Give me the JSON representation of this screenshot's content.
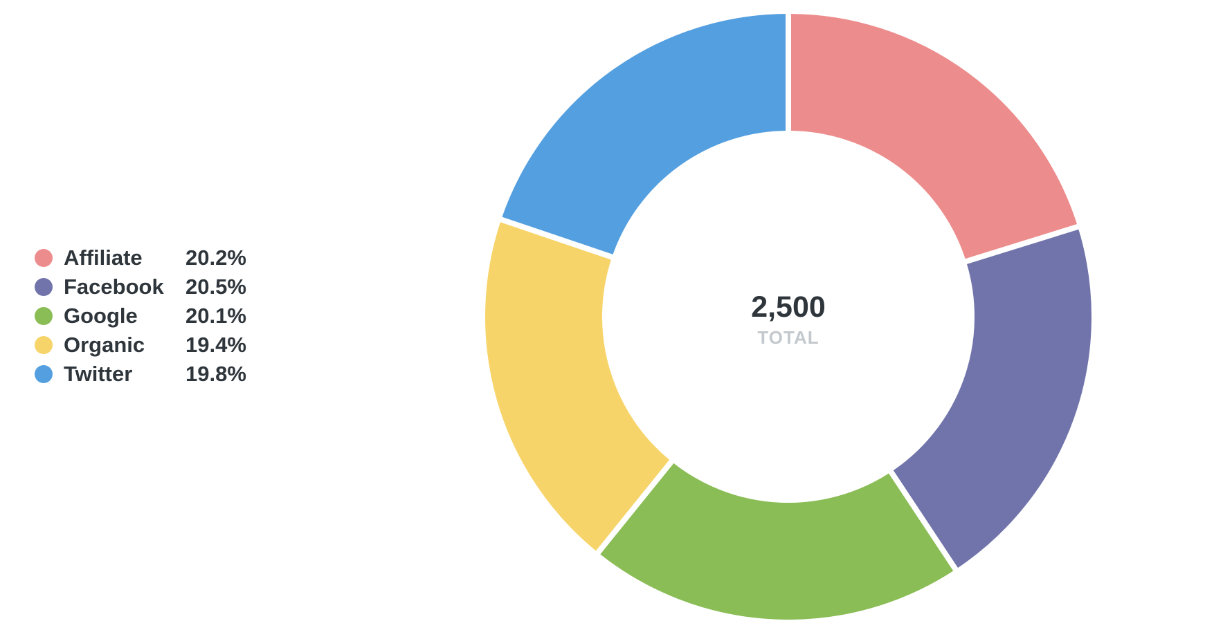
{
  "chart_data": {
    "type": "pie",
    "variant": "donut",
    "total_value": "2,500",
    "total_label": "TOTAL",
    "slices": [
      {
        "label": "Affiliate",
        "percent": 20.2,
        "percent_label": "20.2%",
        "color": "#ed8c8c"
      },
      {
        "label": "Facebook",
        "percent": 20.5,
        "percent_label": "20.5%",
        "color": "#7174ab"
      },
      {
        "label": "Google",
        "percent": 20.1,
        "percent_label": "20.1%",
        "color": "#8abd55"
      },
      {
        "label": "Organic",
        "percent": 19.4,
        "percent_label": "19.4%",
        "color": "#f7d469"
      },
      {
        "label": "Twitter",
        "percent": 19.8,
        "percent_label": "19.8%",
        "color": "#549fdf"
      }
    ],
    "legend_placement": "left"
  }
}
